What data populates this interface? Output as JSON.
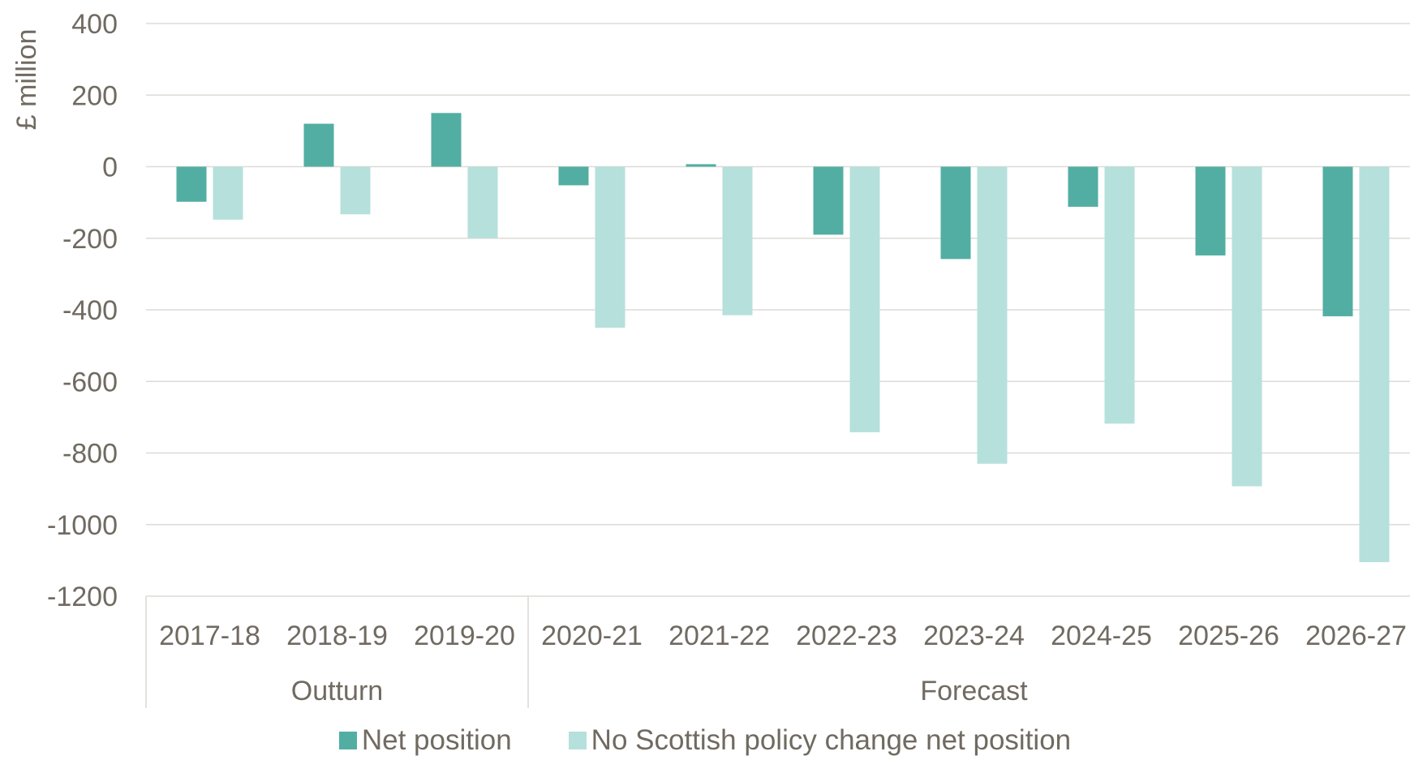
{
  "chart_data": {
    "type": "bar",
    "categories": [
      "2017-18",
      "2018-19",
      "2019-20",
      "2020-21",
      "2021-22",
      "2022-23",
      "2023-24",
      "2024-25",
      "2025-26",
      "2026-27"
    ],
    "groups": [
      {
        "label": "Outturn",
        "start": 0,
        "end": 2
      },
      {
        "label": "Forecast",
        "start": 3,
        "end": 9
      }
    ],
    "series": [
      {
        "name": "Net position",
        "color": "#52aea2",
        "values": [
          -98,
          120,
          150,
          -52,
          7,
          -190,
          -258,
          -112,
          -248,
          -418
        ]
      },
      {
        "name": "No Scottish policy change net position",
        "color": "#b6e0dc",
        "values": [
          -148,
          -133,
          -200,
          -450,
          -415,
          -742,
          -830,
          -718,
          -893,
          -1105
        ]
      }
    ],
    "ylabel": "£ million",
    "ylim": [
      -1200,
      400
    ],
    "yticks": [
      400,
      200,
      0,
      -200,
      -400,
      -600,
      -800,
      -1000,
      -1200
    ],
    "ytick_labels": [
      "400",
      "200",
      "0",
      "-200",
      "-400",
      "-600",
      "-800",
      "-1000",
      "-1200"
    ],
    "grid": true,
    "legend_position": "bottom"
  }
}
